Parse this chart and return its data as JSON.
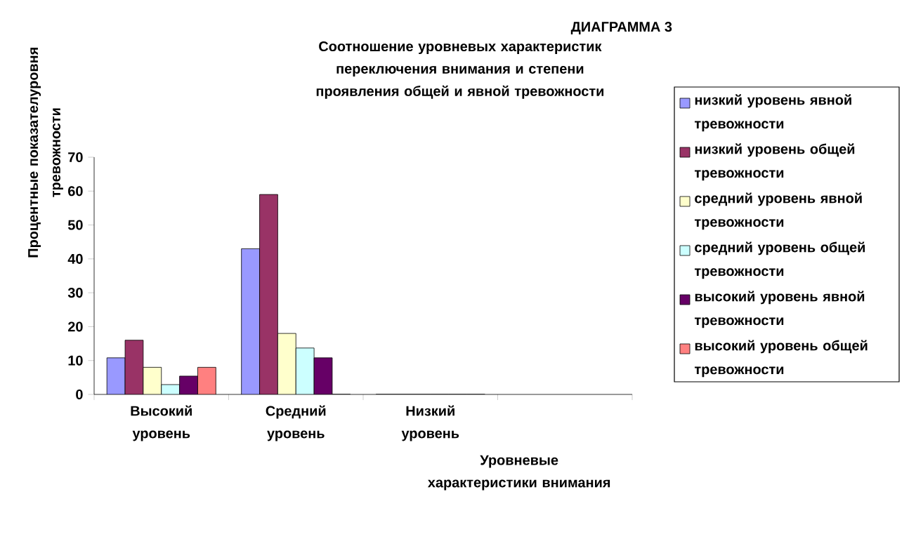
{
  "chart_data": {
    "type": "bar",
    "title": "Соотношение уровневых характеристик переключения внимания и степени проявления общей и явной тревожности",
    "annotations": [
      "ДИАГРАММА 3"
    ],
    "xlabel": "Уровневые характеристики внимания",
    "ylabel": "Процентные показателуровня тревожности",
    "categories": [
      "Высокий уровень",
      "Средний уровень",
      "Низкий уровень",
      null
    ],
    "series": [
      {
        "name": "низкий уровень явной тревожности",
        "color": "#9999ff",
        "values": [
          10.8,
          43,
          0,
          null
        ]
      },
      {
        "name": "низкий уровень общей тревожности",
        "color": "#993366",
        "values": [
          16,
          59,
          0,
          null
        ]
      },
      {
        "name": "средний уровень явной тревожности",
        "color": "#ffffcc",
        "values": [
          8,
          18,
          0,
          null
        ]
      },
      {
        "name": "средний уровень общей тревожности",
        "color": "#ccffff",
        "values": [
          2.9,
          13.7,
          0,
          null
        ]
      },
      {
        "name": "высокий уровень явной тревожности",
        "color": "#660066",
        "values": [
          5.4,
          10.8,
          0,
          null
        ]
      },
      {
        "name": "высокий уровень общей тревожности",
        "color": "#ff8080",
        "values": [
          8,
          0,
          0,
          null
        ]
      }
    ],
    "ylim": [
      0,
      70
    ],
    "yticks": [
      0,
      10,
      20,
      30,
      40,
      50,
      60,
      70
    ],
    "grid": false,
    "legend": "right"
  }
}
